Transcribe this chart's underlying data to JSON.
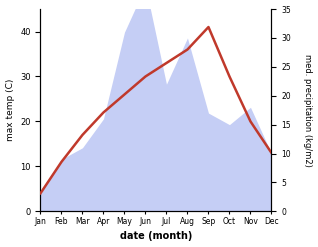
{
  "months": [
    "Jan",
    "Feb",
    "Mar",
    "Apr",
    "May",
    "Jun",
    "Jul",
    "Aug",
    "Sep",
    "Oct",
    "Nov",
    "Dec"
  ],
  "temp": [
    4,
    11,
    17,
    22,
    26,
    30,
    33,
    36,
    41,
    30,
    20,
    13
  ],
  "precip": [
    3,
    9,
    11,
    16,
    31,
    39,
    22,
    30,
    17,
    15,
    18,
    10
  ],
  "temp_color": "#c0392b",
  "precip_fill_color": "#c5cef5",
  "temp_ylim": [
    0,
    45
  ],
  "precip_ylim": [
    0,
    35
  ],
  "temp_yticks": [
    0,
    10,
    20,
    30,
    40
  ],
  "precip_yticks": [
    0,
    5,
    10,
    15,
    20,
    25,
    30,
    35
  ],
  "ylabel_left": "max temp (C)",
  "ylabel_right": "med. precipitation (kg/m2)",
  "xlabel": "date (month)",
  "background_color": "#ffffff"
}
